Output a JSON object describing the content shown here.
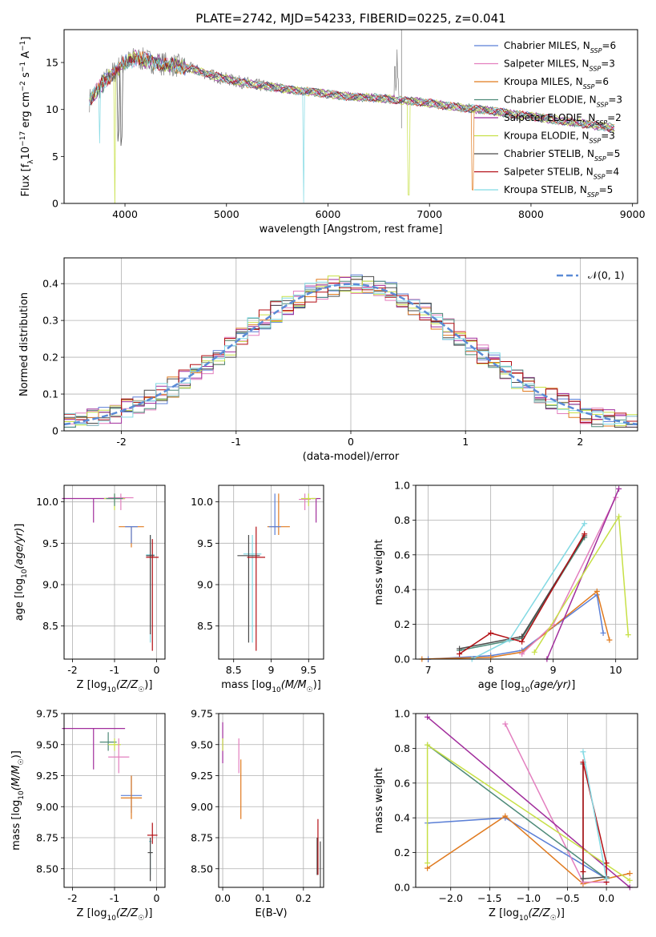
{
  "figure": {
    "title": "PLATE=2742, MJD=54233, FIBERID=0225, z=0.041"
  },
  "colors": {
    "chabrier_miles": "#5b7fd6",
    "salpeter_miles": "#e37fbf",
    "kroupa_miles": "#e07a1f",
    "chabrier_elodie": "#4d8a78",
    "salpeter_elodie": "#a12d9c",
    "kroupa_elodie": "#c7e046",
    "chabrier_stelib": "#4a4a4a",
    "salpeter_stelib": "#b30f14",
    "kroupa_stelib": "#82d9e3",
    "dashed_normal": "#5b8bd6"
  },
  "chart_data": [
    {
      "id": "spectrum",
      "type": "line",
      "xlabel": "wavelength [Angstrom, rest frame]",
      "ylabel": "Flux [f_λ10^-17 erg cm^-2 s^-1 A^-1]",
      "xlim": [
        3400,
        9050
      ],
      "ylim": [
        0,
        18.5
      ],
      "xticks": [
        4000,
        5000,
        6000,
        7000,
        8000,
        9000
      ],
      "yticks": [
        0,
        5,
        10,
        15
      ],
      "grid": false,
      "legend_position": "top-right",
      "legend": [
        {
          "name": "Chabrier MILES, N_SSP=6",
          "color_key": "chabrier_miles"
        },
        {
          "name": "Salpeter MILES, N_SSP=3",
          "color_key": "salpeter_miles"
        },
        {
          "name": "Kroupa MILES, N_SSP=6",
          "color_key": "kroupa_miles"
        },
        {
          "name": "Chabrier ELODIE, N_SSP=3",
          "color_key": "chabrier_elodie"
        },
        {
          "name": "Salpeter ELODIE, N_SSP=2",
          "color_key": "salpeter_elodie"
        },
        {
          "name": "Kroupa ELODIE, N_SSP=3",
          "color_key": "kroupa_elodie"
        },
        {
          "name": "Chabrier STELIB, N_SSP=5",
          "color_key": "chabrier_stelib"
        },
        {
          "name": "Salpeter STELIB, N_SSP=4",
          "color_key": "salpeter_stelib"
        },
        {
          "name": "Kroupa STELIB, N_SSP=5",
          "color_key": "kroupa_stelib"
        }
      ],
      "continuum": {
        "x": [
          3650,
          3800,
          3950,
          4100,
          4300,
          4500,
          4700,
          4900,
          5100,
          5300,
          5500,
          5700,
          5900,
          6100,
          6300,
          6500,
          6700,
          6900,
          7100,
          7300,
          7500,
          7700,
          7900,
          8100,
          8300,
          8500,
          8700,
          8820
        ],
        "y": [
          11.0,
          13.0,
          14.6,
          15.5,
          15.0,
          14.7,
          14.2,
          13.5,
          13.0,
          12.6,
          12.3,
          12.0,
          11.8,
          11.5,
          11.3,
          11.2,
          11.0,
          10.8,
          10.5,
          10.2,
          10.0,
          9.7,
          9.4,
          9.1,
          8.8,
          8.5,
          8.2,
          8.0
        ]
      },
      "dips": [
        {
          "x": 3934,
          "depth": 7,
          "series": "chabrier_stelib"
        },
        {
          "x": 3968,
          "depth": 8,
          "series": "chabrier_stelib"
        },
        {
          "x": 3900,
          "depth": 15,
          "series": "kroupa_elodie"
        },
        {
          "x": 3750,
          "depth": 6,
          "series": "kroupa_stelib"
        },
        {
          "x": 5760,
          "depth": 12,
          "series": "kroupa_stelib"
        },
        {
          "x": 6795,
          "depth": 10,
          "series": "kroupa_elodie"
        },
        {
          "x": 7425,
          "depth": 9,
          "series": "kroupa_miles"
        }
      ]
    },
    {
      "id": "residuals",
      "type": "line",
      "xlabel": "(data-model)/error",
      "ylabel": "Normed distribution",
      "xlim": [
        -2.5,
        2.5
      ],
      "ylim": [
        0,
        0.47
      ],
      "xticks": [
        -2,
        -1,
        0,
        1,
        2
      ],
      "yticks": [
        0.0,
        0.1,
        0.2,
        0.3,
        0.4
      ],
      "grid": true,
      "legend_position": "top-right",
      "legend_label": "𝒩(0, 1)"
    },
    {
      "id": "age_vs_Z",
      "type": "scatter",
      "xlabel": "Z [log10(Z/Z☉)]",
      "ylabel": "age  [log10(age/yr)]",
      "xlim": [
        -2.2,
        0.2
      ],
      "ylim": [
        8.1,
        10.2
      ],
      "xticks": [
        -2,
        -1,
        0
      ],
      "yticks": [
        8.5,
        9.0,
        9.5,
        10.0
      ],
      "grid": true,
      "points": [
        {
          "series": "salpeter_elodie",
          "x": -1.5,
          "xerr": 0.75,
          "y": 10.04,
          "ylo": 9.75,
          "yhi": 10.04
        },
        {
          "series": "kroupa_elodie",
          "x": -1.0,
          "xerr": 0.25,
          "y": 10.04,
          "ylo": 9.9,
          "yhi": 10.1
        },
        {
          "series": "salpeter_miles",
          "x": -0.85,
          "xerr": 0.3,
          "y": 10.05,
          "ylo": 9.9,
          "yhi": 10.1
        },
        {
          "series": "chabrier_elodie",
          "x": -1.0,
          "xerr": 0.2,
          "y": 10.04,
          "ylo": 9.95,
          "yhi": 10.1
        },
        {
          "series": "kroupa_miles",
          "x": -0.6,
          "xerr": 0.3,
          "y": 9.7,
          "ylo": 9.45,
          "yhi": 9.7
        },
        {
          "series": "chabrier_miles",
          "x": -0.6,
          "xerr": 0.15,
          "y": 9.7,
          "ylo": 9.5,
          "yhi": 9.7
        },
        {
          "series": "kroupa_stelib",
          "x": -0.15,
          "xerr": 0.1,
          "y": 9.36,
          "ylo": 8.3,
          "yhi": 9.6
        },
        {
          "series": "chabrier_stelib",
          "x": -0.15,
          "xerr": 0.1,
          "y": 9.35,
          "ylo": 8.4,
          "yhi": 9.6
        },
        {
          "series": "salpeter_stelib",
          "x": -0.1,
          "xerr": 0.15,
          "y": 9.33,
          "ylo": 8.2,
          "yhi": 9.55
        }
      ]
    },
    {
      "id": "age_vs_mass",
      "type": "scatter",
      "xlabel": "mass [log10(M/M☉)]",
      "ylabel": "",
      "xlim": [
        8.3,
        9.7
      ],
      "ylim": [
        8.1,
        10.2
      ],
      "xticks": [
        8.5,
        9.0,
        9.5
      ],
      "yticks": [
        8.5,
        9.0,
        9.5,
        10.0
      ],
      "grid": true,
      "points": [
        {
          "series": "salpeter_elodie",
          "x": 9.6,
          "xerr": 0.06,
          "y": 10.04,
          "ylo": 9.75,
          "yhi": 10.04
        },
        {
          "series": "salpeter_miles",
          "x": 9.45,
          "xerr": 0.08,
          "y": 10.03,
          "ylo": 9.9,
          "yhi": 10.1
        },
        {
          "series": "kroupa_elodie",
          "x": 9.5,
          "xerr": 0.1,
          "y": 10.04,
          "ylo": 9.95,
          "yhi": 10.1
        },
        {
          "series": "kroupa_miles",
          "x": 9.1,
          "xerr": 0.15,
          "y": 9.7,
          "ylo": 9.6,
          "yhi": 10.1
        },
        {
          "series": "chabrier_miles",
          "x": 9.05,
          "xerr": 0.08,
          "y": 9.7,
          "ylo": 9.6,
          "yhi": 10.1
        },
        {
          "series": "kroupa_stelib",
          "x": 8.75,
          "xerr": 0.12,
          "y": 9.37,
          "ylo": 8.3,
          "yhi": 9.6
        },
        {
          "series": "chabrier_stelib",
          "x": 8.7,
          "xerr": 0.15,
          "y": 9.35,
          "ylo": 8.3,
          "yhi": 9.6
        },
        {
          "series": "salpeter_stelib",
          "x": 8.8,
          "xerr": 0.12,
          "y": 9.33,
          "ylo": 8.2,
          "yhi": 9.7
        }
      ]
    },
    {
      "id": "weight_vs_age",
      "type": "line",
      "xlabel": "age  [log10(age/yr)]",
      "ylabel": "mass weight",
      "xlim": [
        6.8,
        10.35
      ],
      "ylim": [
        0,
        1.0
      ],
      "xticks": [
        7,
        8,
        9,
        10
      ],
      "yticks": [
        0.0,
        0.2,
        0.4,
        0.6,
        0.8,
        1.0
      ],
      "grid": true,
      "series": [
        {
          "name": "chabrier_miles",
          "x": [
            7.0,
            8.0,
            8.5,
            9.7,
            9.8
          ],
          "y": [
            0.0,
            0.02,
            0.05,
            0.37,
            0.15
          ]
        },
        {
          "name": "kroupa_miles",
          "x": [
            6.9,
            8.0,
            8.5,
            9.7,
            9.9
          ],
          "y": [
            0.0,
            0.01,
            0.04,
            0.39,
            0.11
          ]
        },
        {
          "name": "salpeter_miles",
          "x": [
            8.5,
            9.0,
            10.0
          ],
          "y": [
            0.03,
            0.2,
            0.93
          ]
        },
        {
          "name": "chabrier_elodie",
          "x": [
            7.5,
            8.5,
            9.5
          ],
          "y": [
            0.05,
            0.12,
            0.7
          ]
        },
        {
          "name": "salpeter_elodie",
          "x": [
            8.9,
            10.05
          ],
          "y": [
            0.0,
            0.98
          ]
        },
        {
          "name": "kroupa_elodie",
          "x": [
            8.7,
            10.05,
            10.2
          ],
          "y": [
            0.04,
            0.82,
            0.14
          ]
        },
        {
          "name": "chabrier_stelib",
          "x": [
            7.5,
            8.5,
            9.5
          ],
          "y": [
            0.06,
            0.13,
            0.71
          ]
        },
        {
          "name": "salpeter_stelib",
          "x": [
            7.5,
            8.0,
            8.5,
            9.5
          ],
          "y": [
            0.03,
            0.15,
            0.1,
            0.72
          ]
        },
        {
          "name": "kroupa_stelib",
          "x": [
            7.7,
            8.3,
            9.5
          ],
          "y": [
            0.0,
            0.11,
            0.78
          ]
        }
      ]
    },
    {
      "id": "mass_vs_Z",
      "type": "scatter",
      "xlabel": "Z [log10(Z/Z☉)]",
      "ylabel": "mass [log10(M/M☉)]",
      "xlim": [
        -2.2,
        0.2
      ],
      "ylim": [
        8.35,
        9.75
      ],
      "xticks": [
        -2,
        -1,
        0
      ],
      "yticks": [
        8.5,
        8.75,
        9.0,
        9.25,
        9.5,
        9.75
      ],
      "grid": true,
      "points": [
        {
          "series": "salpeter_elodie",
          "x": -1.5,
          "xerr": 0.75,
          "y": 9.63,
          "ylo": 9.3,
          "yhi": 9.63
        },
        {
          "series": "chabrier_elodie",
          "x": -1.15,
          "xerr": 0.2,
          "y": 9.52,
          "ylo": 9.45,
          "yhi": 9.6
        },
        {
          "series": "kroupa_elodie",
          "x": -1.0,
          "xerr": 0.15,
          "y": 9.5,
          "ylo": 9.45,
          "yhi": 9.55
        },
        {
          "series": "salpeter_miles",
          "x": -0.9,
          "xerr": 0.25,
          "y": 9.4,
          "ylo": 9.27,
          "yhi": 9.55
        },
        {
          "series": "chabrier_miles",
          "x": -0.6,
          "xerr": 0.25,
          "y": 9.09,
          "ylo": 8.95,
          "yhi": 9.25
        },
        {
          "series": "kroupa_miles",
          "x": -0.6,
          "xerr": 0.25,
          "y": 9.07,
          "ylo": 8.9,
          "yhi": 9.25
        },
        {
          "series": "salpeter_stelib",
          "x": -0.1,
          "xerr": 0.12,
          "y": 8.77,
          "ylo": 8.7,
          "yhi": 8.87
        },
        {
          "series": "kroupa_stelib",
          "x": -0.15,
          "xerr": 0.03,
          "y": 8.72,
          "ylo": 8.45,
          "yhi": 8.75
        },
        {
          "series": "chabrier_stelib",
          "x": -0.15,
          "xerr": 0.06,
          "y": 8.63,
          "ylo": 8.4,
          "yhi": 8.75
        }
      ]
    },
    {
      "id": "mass_vs_ebv",
      "type": "scatter",
      "xlabel": "E(B-V)",
      "ylabel": "",
      "xlim": [
        -0.01,
        0.25
      ],
      "ylim": [
        8.35,
        9.75
      ],
      "xticks": [
        0.0,
        0.1,
        0.2
      ],
      "yticks": [
        8.5,
        8.75,
        9.0,
        9.25,
        9.5,
        9.75
      ],
      "grid": true,
      "points": [
        {
          "series": "salpeter_elodie",
          "x": 0.0,
          "y": 9.6,
          "ylo": 9.35,
          "yhi": 9.68
        },
        {
          "series": "kroupa_elodie",
          "x": 0.0,
          "y": 9.5,
          "ylo": 9.45,
          "yhi": 9.55
        },
        {
          "series": "salpeter_miles",
          "x": 0.04,
          "y": 9.4,
          "ylo": 9.27,
          "yhi": 9.55
        },
        {
          "series": "kroupa_miles",
          "x": 0.045,
          "y": 9.15,
          "ylo": 8.9,
          "yhi": 9.38
        },
        {
          "series": "chabrier_stelib",
          "x": 0.234,
          "y": 8.6,
          "ylo": 8.45,
          "yhi": 8.75
        },
        {
          "series": "salpeter_stelib",
          "x": 0.236,
          "y": 8.7,
          "ylo": 8.45,
          "yhi": 8.9
        },
        {
          "series": "chabrier_stelib",
          "x": 0.242,
          "y": 8.55,
          "ylo": 8.35,
          "yhi": 8.72
        }
      ]
    },
    {
      "id": "weight_vs_Z",
      "type": "line",
      "xlabel": "Z [log10(Z/Z☉)]",
      "ylabel": "mass weight",
      "xlim": [
        -2.45,
        0.4
      ],
      "ylim": [
        0,
        1.0
      ],
      "xticks": [
        -2.0,
        -1.5,
        -1.0,
        -0.5,
        0.0
      ],
      "yticks": [
        0.0,
        0.2,
        0.4,
        0.6,
        0.8,
        1.0
      ],
      "grid": true,
      "series": [
        {
          "name": "chabrier_miles",
          "x": [
            -2.3,
            -1.3,
            0.0
          ],
          "y": [
            0.37,
            0.4,
            0.05
          ]
        },
        {
          "name": "kroupa_miles",
          "x": [
            -2.3,
            -1.3,
            -0.3,
            0.3
          ],
          "y": [
            0.11,
            0.41,
            0.02,
            0.08
          ]
        },
        {
          "name": "salpeter_miles",
          "x": [
            -1.3,
            -0.3,
            0.0
          ],
          "y": [
            0.94,
            0.03,
            0.03
          ]
        },
        {
          "name": "chabrier_elodie",
          "x": [
            -2.3,
            0.0
          ],
          "y": [
            0.82,
            0.05
          ]
        },
        {
          "name": "salpeter_elodie",
          "x": [
            -2.3,
            0.3
          ],
          "y": [
            0.98,
            0.0
          ]
        },
        {
          "name": "kroupa_elodie",
          "x": [
            -2.3,
            -2.3,
            0.3
          ],
          "y": [
            0.14,
            0.82,
            0.04
          ]
        },
        {
          "name": "chabrier_stelib",
          "x": [
            -0.3,
            -0.3,
            0.0
          ],
          "y": [
            0.71,
            0.05,
            0.06
          ]
        },
        {
          "name": "salpeter_stelib",
          "x": [
            -0.3,
            -0.3,
            0.0,
            0.0
          ],
          "y": [
            0.09,
            0.72,
            0.14,
            0.03
          ]
        },
        {
          "name": "kroupa_stelib",
          "x": [
            -0.3,
            0.0
          ],
          "y": [
            0.78,
            0.05
          ]
        }
      ]
    }
  ]
}
